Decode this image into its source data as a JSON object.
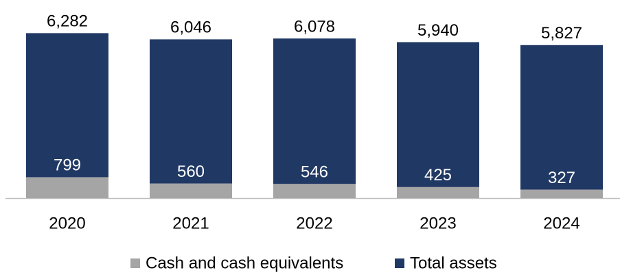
{
  "chart_data": {
    "type": "bar",
    "overlap": true,
    "categories": [
      "2020",
      "2021",
      "2022",
      "2023",
      "2024"
    ],
    "series": [
      {
        "name": "Cash and cash equivalents",
        "color": "#a5a5a5",
        "values": [
          799,
          560,
          546,
          425,
          327
        ]
      },
      {
        "name": "Total assets",
        "color": "#203864",
        "values": [
          6282,
          6046,
          6078,
          5940,
          5827
        ]
      }
    ],
    "ylim": [
      0,
      6500
    ]
  }
}
